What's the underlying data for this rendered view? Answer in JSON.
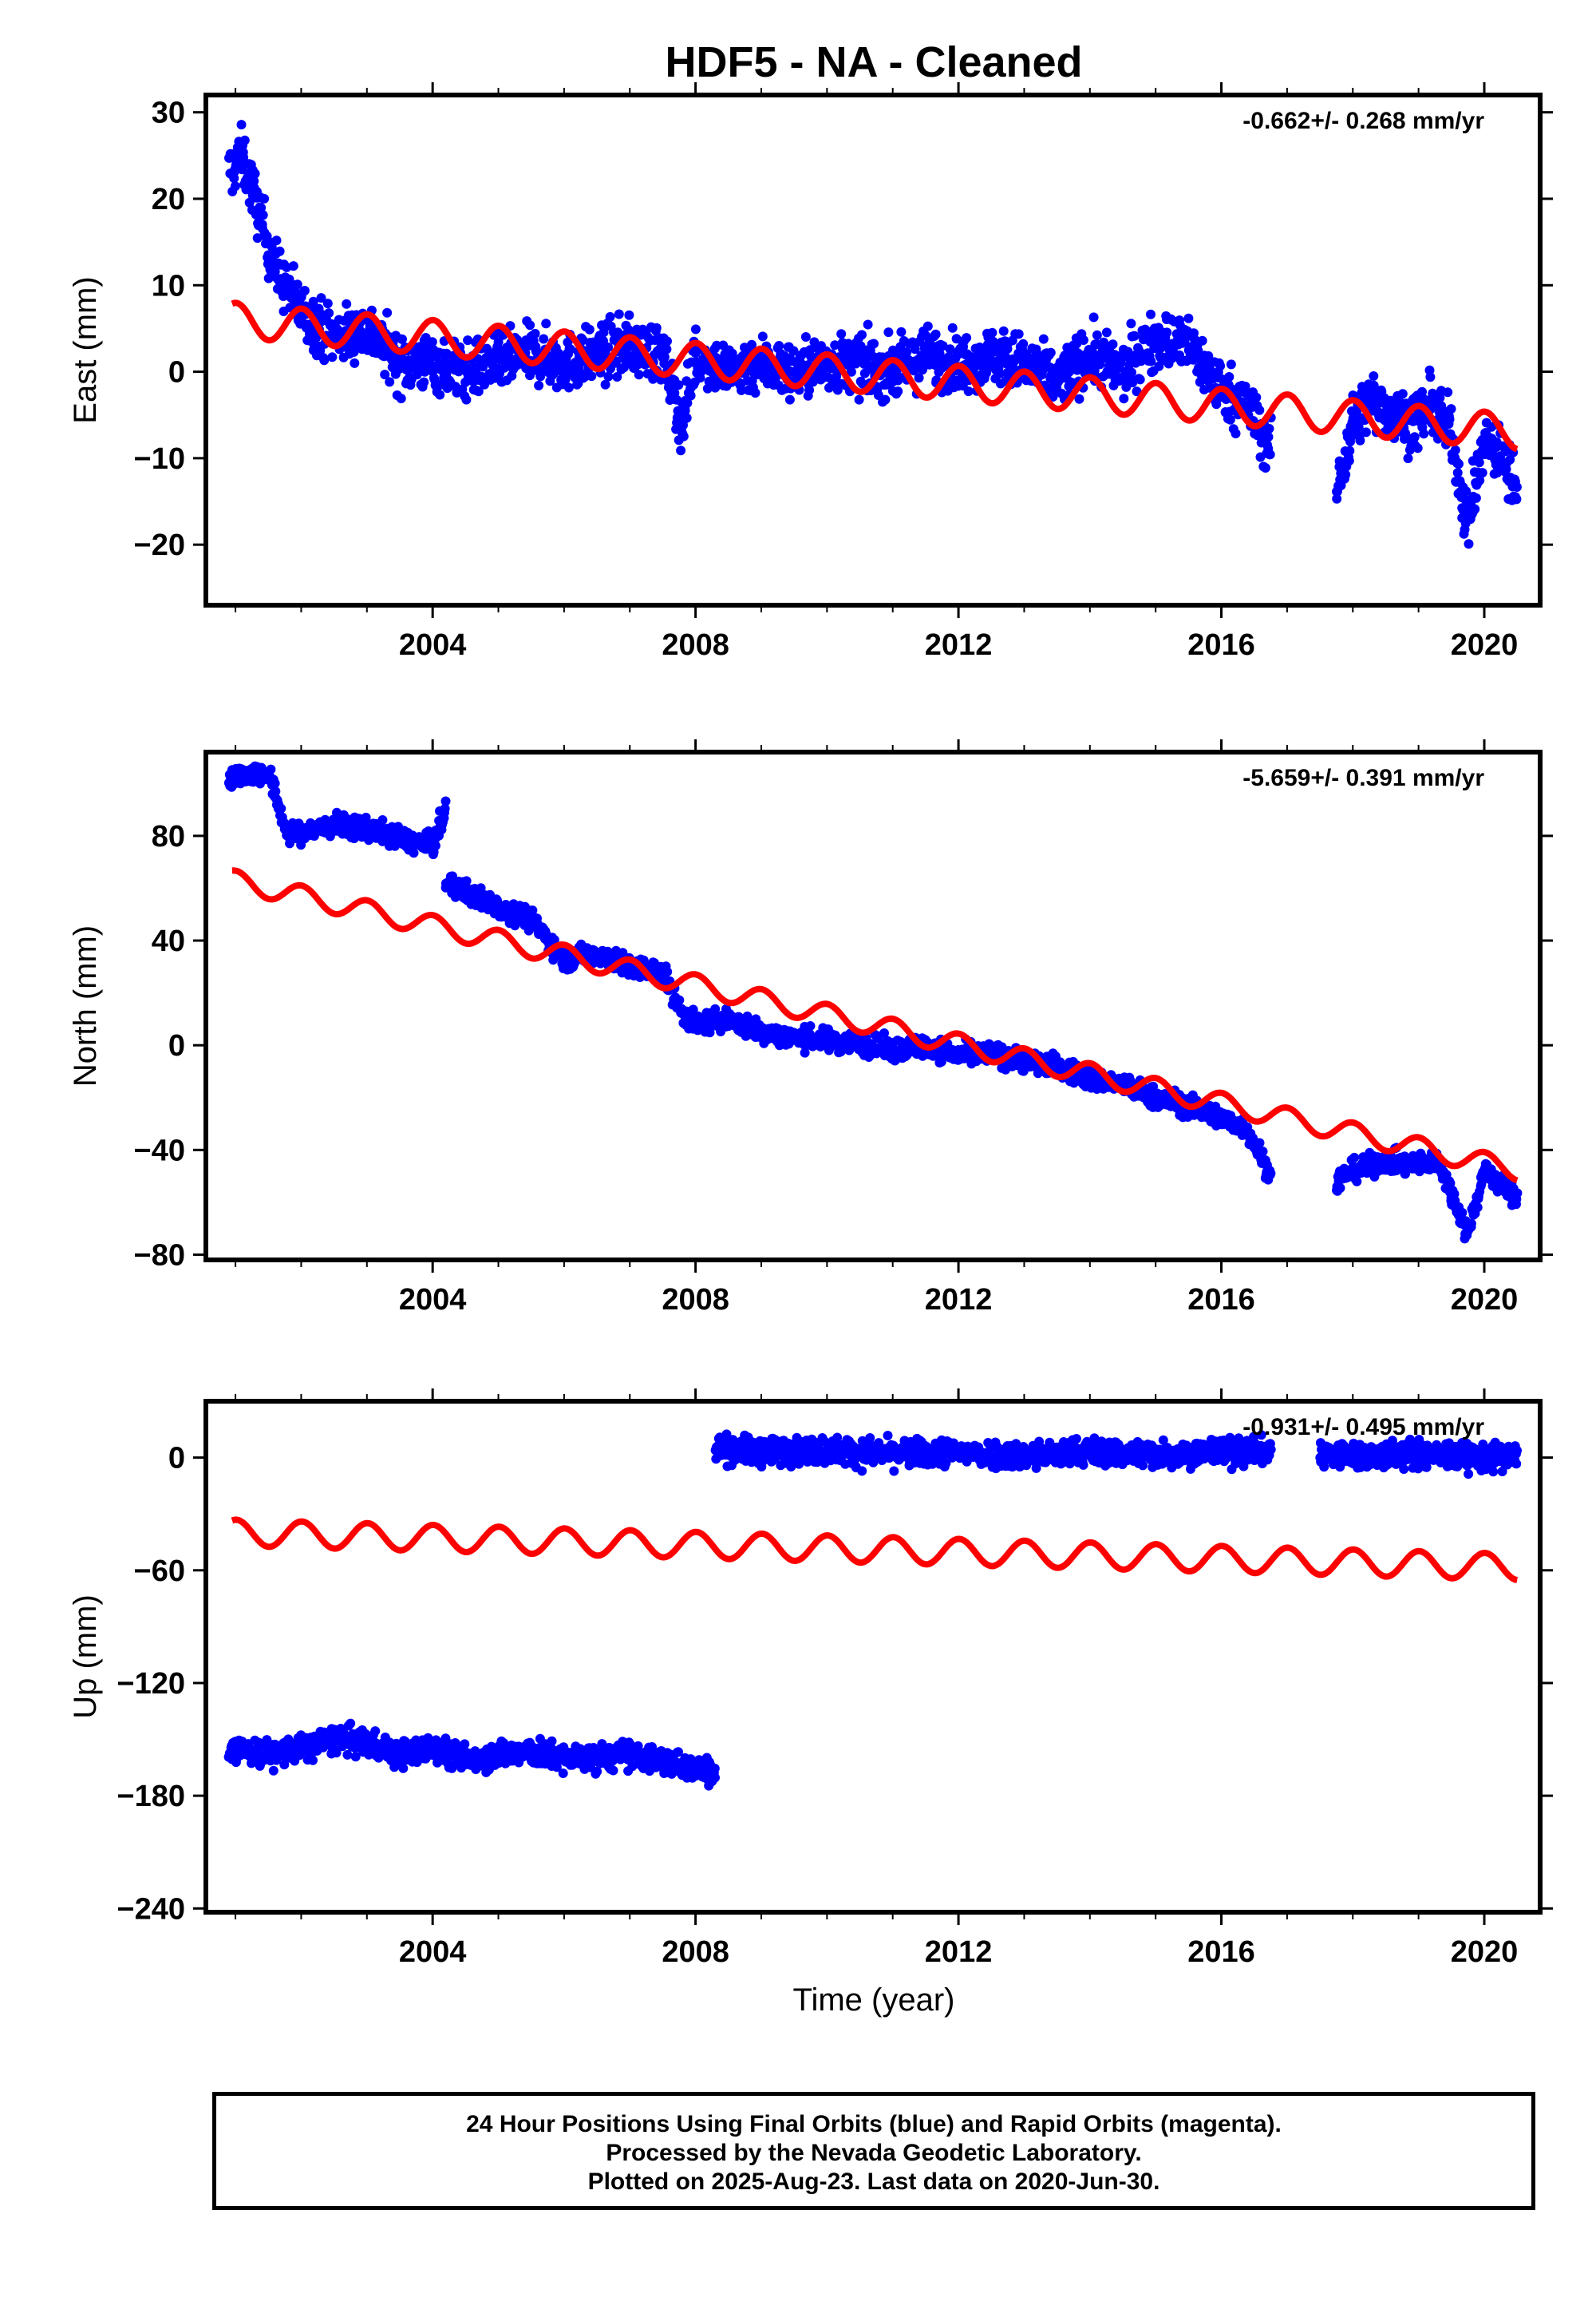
{
  "title": "HDF5  - NA - Cleaned",
  "xlabel": "Time (year)",
  "x_ticks": [
    "2004",
    "2008",
    "2012",
    "2016",
    "2020"
  ],
  "footer": {
    "line1": "24 Hour Positions Using Final Orbits (blue) and Rapid Orbits (magenta).",
    "line2": "Processed by the Nevada Geodetic Laboratory.",
    "line3": "Plotted on 2025-Aug-23. Last data on 2020-Jun-30."
  },
  "colors": {
    "data": "#0000ff",
    "model": "#ff0000",
    "axes": "#000000"
  },
  "chart_data": [
    {
      "type": "scatter",
      "ylabel": "East (mm)",
      "rate_label": "-0.662+/- 0.268 mm/yr",
      "xlim": [
        2000.55,
        2020.85
      ],
      "ylim": [
        -27,
        32
      ],
      "yticks": [
        -20,
        -10,
        0,
        10,
        20,
        30
      ],
      "ytick_labels": [
        "−20",
        "−10",
        "0",
        "10",
        "20",
        "30"
      ],
      "grid": false,
      "series": [
        {
          "role": "observations",
          "color": "#0000ff",
          "segments": [
            {
              "x": [
                2000.9,
                2001.1,
                2001.3,
                2001.6,
                2002.0,
                2002.5,
                2003.0,
                2003.5,
                2004.0,
                2004.5,
                2005.0,
                2005.5,
                2006.0,
                2006.5,
                2007.0,
                2007.5,
                2007.8,
                2008.0,
                2008.5,
                2009.0,
                2009.5,
                2010.0,
                2010.5,
                2011.0,
                2011.5,
                2012.0,
                2012.5,
                2013.0,
                2013.5,
                2014.0,
                2014.5,
                2015.0,
                2015.5,
                2016.0,
                2016.4,
                2016.75
              ],
              "y": [
                23,
                25,
                20,
                12,
                7,
                4,
                5,
                1,
                1,
                0,
                1,
                2,
                1,
                2,
                3,
                2,
                -6,
                2,
                0,
                1,
                0,
                1,
                1,
                0,
                2,
                1,
                2,
                1,
                -1,
                2,
                0,
                4,
                3,
                -2,
                -4,
                -9
              ],
              "spread": 3.2
            },
            {
              "x": [
                2017.75,
                2018.0,
                2018.3,
                2018.6,
                2018.9,
                2019.2,
                2019.5,
                2019.75,
                2020.0,
                2020.3,
                2020.5
              ],
              "y": [
                -14,
                -6,
                -3,
                -5,
                -6,
                -4,
                -7,
                -18,
                -8,
                -10,
                -14
              ],
              "spread": 3.2
            }
          ]
        },
        {
          "role": "model",
          "color": "#ff0000",
          "trend": {
            "start": 6.0,
            "rate": -0.662
          },
          "seasonal_amplitude": 2.0,
          "offsets": [
            {
              "year": 2000.9,
              "value": 0
            }
          ],
          "x_range": [
            2000.95,
            2020.5
          ]
        }
      ]
    },
    {
      "type": "scatter",
      "ylabel": "North (mm)",
      "rate_label": "-5.659+/- 0.391 mm/yr",
      "xlim": [
        2000.55,
        2020.85
      ],
      "ylim": [
        -82,
        112
      ],
      "yticks": [
        -80,
        -40,
        0,
        40,
        80
      ],
      "ytick_labels": [
        "−80",
        "−40",
        "0",
        "40",
        "80"
      ],
      "grid": false,
      "series": [
        {
          "role": "observations",
          "color": "#0000ff",
          "segments": [
            {
              "x": [
                2000.9,
                2001.5,
                2001.8,
                2002.5,
                2003.0,
                2003.5,
                2004.0,
                2004.2
              ],
              "y": [
                103,
                104,
                80,
                84,
                83,
                79,
                76,
                90
              ],
              "spread": 4
            },
            {
              "x": [
                2004.2,
                2004.8,
                2005.5,
                2006.0,
                2006.5,
                2007.0,
                2007.5,
                2007.8,
                2008.0,
                2008.5,
                2009.0,
                2009.5,
                2010.0,
                2010.5,
                2011.0,
                2011.5,
                2012.0,
                2012.5,
                2013.0,
                2013.5,
                2014.0,
                2014.5,
                2015.0,
                2015.5,
                2016.0,
                2016.4,
                2016.75
              ],
              "y": [
                62,
                55,
                48,
                33,
                35,
                30,
                28,
                12,
                8,
                10,
                5,
                3,
                2,
                1,
                -2,
                0,
                -4,
                -3,
                -6,
                -8,
                -13,
                -15,
                -20,
                -23,
                -28,
                -32,
                -50
              ],
              "spread": 4
            },
            {
              "x": [
                2017.75,
                2018.0,
                2018.5,
                2018.9,
                2019.3,
                2019.75,
                2020.0,
                2020.5
              ],
              "y": [
                -52,
                -48,
                -44,
                -46,
                -44,
                -72,
                -48,
                -58
              ],
              "spread": 4
            }
          ]
        },
        {
          "role": "model",
          "color": "#ff0000",
          "trend": {
            "start": 63.0,
            "rate": -5.659
          },
          "seasonal_amplitude": 4.0,
          "offsets": [
            {
              "year": 2000.9,
              "value": 0
            }
          ],
          "x_range": [
            2000.95,
            2020.5
          ]
        }
      ]
    },
    {
      "type": "scatter",
      "ylabel": "Up (mm)",
      "rate_label": "-0.931+/- 0.495 mm/yr",
      "xlim": [
        2000.55,
        2020.85
      ],
      "ylim": [
        -242,
        30
      ],
      "yticks": [
        -240,
        -180,
        -120,
        -60,
        0
      ],
      "ytick_labels": [
        "−240",
        "−180",
        "−120",
        "−60",
        "0"
      ],
      "grid": false,
      "series": [
        {
          "role": "observations",
          "color": "#0000ff",
          "segments": [
            {
              "x": [
                2000.9,
                2001.5,
                2002.0,
                2002.5,
                2003.0,
                2003.5,
                2004.0,
                2004.5,
                2005.0,
                2005.5,
                2006.0,
                2006.5,
                2007.0,
                2007.5,
                2008.0,
                2008.3
              ],
              "y": [
                -155,
                -158,
                -155,
                -150,
                -152,
                -158,
                -155,
                -160,
                -158,
                -157,
                -160,
                -160,
                -158,
                -162,
                -165,
                -168
              ],
              "spread": 7
            },
            {
              "x": [
                2008.3,
                2009.0,
                2010.0,
                2011.0,
                2012.0,
                2013.0,
                2014.0,
                2015.0,
                2016.0,
                2016.75
              ],
              "y": [
                5,
                3,
                4,
                2,
                3,
                1,
                3,
                2,
                3,
                4
              ],
              "spread": 7
            },
            {
              "x": [
                2017.5,
                2018.0,
                2019.0,
                2020.0,
                2020.5
              ],
              "y": [
                2,
                1,
                2,
                0,
                0
              ],
              "spread": 7
            }
          ]
        },
        {
          "role": "model",
          "color": "#ff0000",
          "trend": {
            "start": -40.0,
            "rate": -0.931
          },
          "seasonal_amplitude": 7.0,
          "offsets": [
            {
              "year": 2000.9,
              "value": 0
            }
          ],
          "x_range": [
            2000.95,
            2020.5
          ]
        }
      ]
    }
  ]
}
